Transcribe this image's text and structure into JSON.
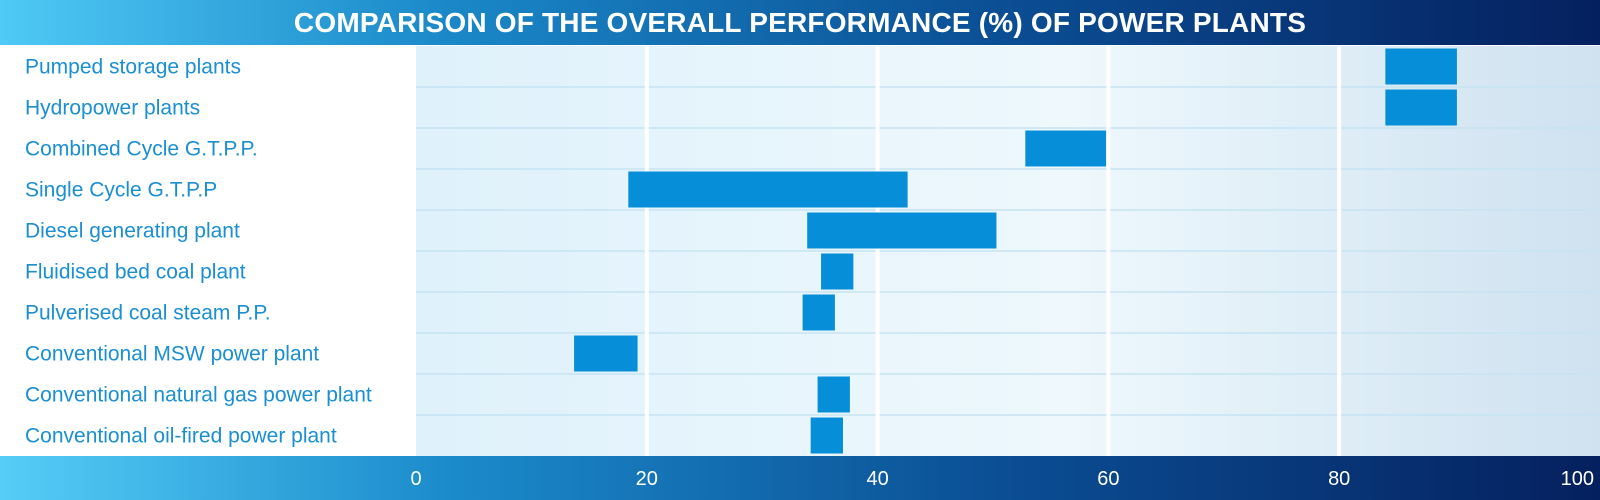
{
  "chart_data": {
    "type": "bar",
    "orientation": "horizontal-range",
    "title": "COMPARISON OF THE OVERALL PERFORMANCE (%) OF POWER PLANTS",
    "xlabel": "",
    "ylabel": "",
    "xlim": [
      0,
      100
    ],
    "xticks": [
      0,
      20,
      40,
      60,
      80,
      100
    ],
    "categories": [
      "Pumped storage plants",
      "Hydropower plants",
      "Combined Cycle G.T.P.P.",
      "Single Cycle G.T.P.P",
      "Diesel generating plant",
      "Fluidised bed coal plant",
      "Pulverised coal steam P.P.",
      "Conventional MSW power plant",
      "Conventional natural gas power plant",
      "Conventional oil-fired power plant"
    ],
    "ranges": [
      [
        84,
        90.2
      ],
      [
        84,
        90.2
      ],
      [
        52.8,
        59.8
      ],
      [
        18.4,
        42.6
      ],
      [
        33.9,
        50.3
      ],
      [
        35.1,
        37.9
      ],
      [
        33.5,
        36.3
      ],
      [
        13.7,
        19.2
      ],
      [
        34.8,
        37.6
      ],
      [
        34.2,
        37.0
      ]
    ],
    "grid": true,
    "colors": {
      "bar": "#068fd8",
      "label": "#1a8fd2",
      "grid_line": "#ffffff",
      "row_line": "#c6e3f2"
    }
  }
}
